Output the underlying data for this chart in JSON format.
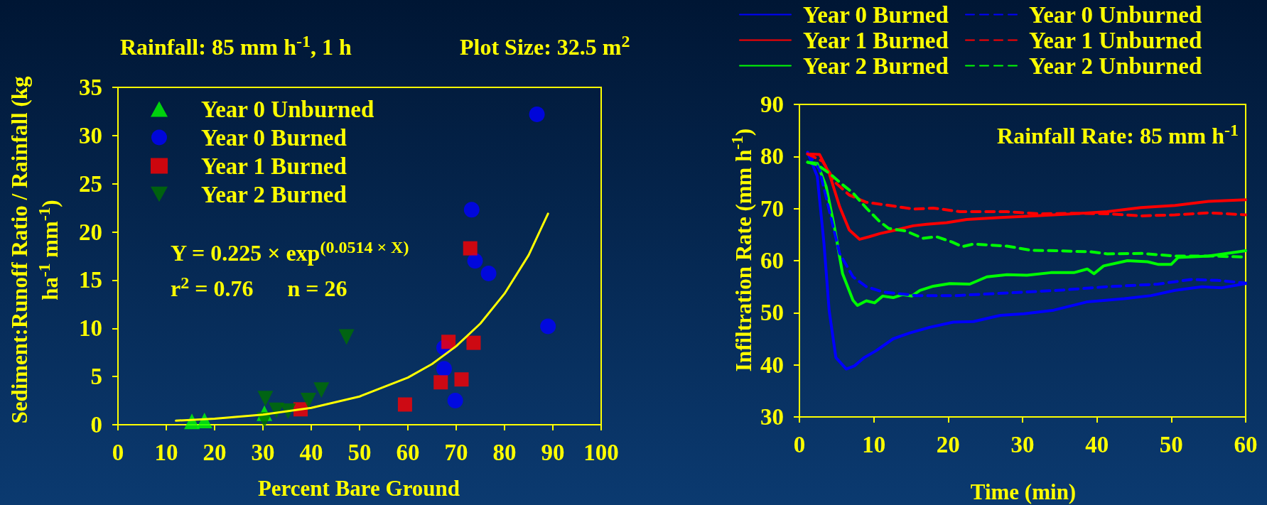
{
  "chart_data": [
    {
      "type": "scatter",
      "xlabel": "Percent Bare Ground",
      "ylabel": "Sediment:Runoff Ratio / Rainfall (kg ha$^{-1}$ mm$^{-1}$)",
      "annotations": [
        "Rainfall: 85 mm h$^{-1}$, 1 h",
        "Plot Size: 32.5 m$^{2}$",
        "Y = 0.225 × exp$^{(0.0514 × X)}$",
        "r$^{2}$ = 0.76      n = 26"
      ],
      "xlim": [
        0,
        100
      ],
      "xticks": [
        0,
        10,
        20,
        30,
        40,
        50,
        60,
        70,
        80,
        90,
        100
      ],
      "ylim": [
        0,
        35
      ],
      "yticks": [
        0,
        5,
        10,
        15,
        20,
        25,
        30,
        35
      ],
      "grid": false,
      "legend": "top left",
      "series": [
        {
          "name": "Year 0 Unburned",
          "color": "#00ff00",
          "marker": "triangle",
          "x": [
            15.3,
            17.9,
            30.3
          ],
          "values": [
            0.35,
            0.45,
            1.2
          ]
        },
        {
          "name": "Year 0 Burned",
          "color": "#0000ff",
          "marker": "circle",
          "x": [
            86.7,
            73.2,
            73.9,
            76.7,
            89.0,
            67.5,
            67.5,
            69.8
          ],
          "values": [
            32.2,
            22.3,
            17.0,
            15.7,
            10.2,
            8.0,
            5.8,
            2.5
          ]
        },
        {
          "name": "Year 1 Burned",
          "color": "#ff0000",
          "marker": "square",
          "x": [
            72.9,
            68.4,
            73.6,
            66.8,
            71.1,
            59.4,
            37.8
          ],
          "values": [
            18.3,
            8.6,
            8.5,
            4.4,
            4.7,
            2.1,
            1.6
          ]
        },
        {
          "name": "Year 2 Burned",
          "color": "#007000",
          "marker": "triangle-down",
          "x": [
            47.3,
            30.5,
            42.1,
            39.4,
            32.8,
            35.2,
            30.3
          ],
          "values": [
            9.1,
            2.7,
            3.6,
            2.5,
            1.5,
            1.4,
            0.5
          ]
        },
        {
          "type": "line",
          "color": "#ffff00",
          "marker": "none",
          "line_style": "solid",
          "x": [
            12,
            20,
            30,
            40,
            50,
            60,
            65,
            70,
            75,
            80,
            85,
            89
          ],
          "values": [
            0.42,
            0.63,
            1.05,
            1.75,
            2.93,
            4.89,
            6.3,
            8.15,
            10.5,
            13.6,
            17.6,
            21.9
          ]
        }
      ]
    },
    {
      "type": "line",
      "xlabel": "Time (min)",
      "ylabel": "Infiltration Rate (mm h$^{-1}$)",
      "annotations": [
        "Rainfall Rate: 85 mm h$^{-1}$"
      ],
      "xlim": [
        0,
        60
      ],
      "xticks": [
        0,
        10,
        20,
        30,
        40,
        50,
        60
      ],
      "ylim": [
        30,
        90
      ],
      "yticks": [
        30,
        40,
        50,
        60,
        70,
        80,
        90
      ],
      "grid": false,
      "legend": "top",
      "marker": "none",
      "series": [
        {
          "name": "Year 0 Burned",
          "color": "#0000ff",
          "line_style": "solid",
          "x": [
            1.1,
            2.4,
            3.3,
            4.0,
            4.9,
            6.3,
            7.4,
            8.7,
            10.3,
            12.6,
            14.8,
            17.5,
            20.7,
            23.4,
            27.0,
            30.2,
            34.2,
            38.7,
            43.7,
            47.3,
            50.5,
            54.1,
            56.8,
            60
          ],
          "values": [
            80.8,
            76.2,
            63.3,
            50.4,
            41.4,
            39.2,
            39.8,
            41.4,
            42.7,
            45.0,
            46.1,
            47.2,
            48.2,
            48.3,
            49.5,
            49.8,
            50.5,
            52.1,
            52.7,
            53.3,
            54.3,
            55.0,
            54.8,
            55.6
          ]
        },
        {
          "name": "Year 1 Burned",
          "color": "#ff0000",
          "line_style": "solid",
          "x": [
            1.1,
            2.7,
            4.0,
            5.4,
            6.7,
            8.1,
            9.4,
            10.8,
            13.0,
            15.3,
            17.1,
            19.8,
            22.5,
            27.0,
            31.5,
            36.9,
            41.4,
            45.9,
            50.5,
            55.0,
            60
          ],
          "values": [
            80.5,
            80.4,
            76.8,
            70.4,
            65.9,
            64.1,
            64.6,
            65.2,
            65.9,
            66.7,
            67.0,
            67.3,
            67.9,
            68.3,
            68.6,
            69.0,
            69.4,
            70.2,
            70.6,
            71.4,
            71.7
          ]
        },
        {
          "name": "Year 2 Burned",
          "color": "#00ff00",
          "line_style": "solid",
          "x": [
            1.1,
            2.4,
            3.6,
            4.7,
            5.8,
            7.2,
            7.8,
            9.0,
            10.1,
            11.2,
            12.6,
            13.9,
            15.1,
            16.2,
            18.0,
            20.2,
            22.9,
            25.2,
            27.9,
            30.6,
            33.8,
            36.9,
            38.7,
            39.6,
            40.9,
            44.1,
            46.8,
            48.2,
            50.0,
            50.9,
            55.0,
            60
          ],
          "values": [
            78.9,
            78.7,
            74.2,
            66.5,
            57.5,
            52.4,
            51.4,
            52.3,
            51.9,
            53.2,
            52.9,
            53.5,
            53.2,
            54.3,
            55.1,
            55.6,
            55.5,
            56.9,
            57.3,
            57.2,
            57.7,
            57.7,
            58.4,
            57.5,
            59.0,
            60.0,
            59.8,
            59.3,
            59.3,
            60.6,
            60.9,
            61.9
          ]
        },
        {
          "name": "Year 0 Unburned",
          "color": "#0000ff",
          "line_style": "dashed",
          "x": [
            1.1,
            2.7,
            4.0,
            5.4,
            7.2,
            9.0,
            11.2,
            15.7,
            21.1,
            27.9,
            34.7,
            41.4,
            48.2,
            52.7,
            56.3,
            60
          ],
          "values": [
            80.8,
            77.5,
            69.7,
            61.4,
            56.9,
            55.0,
            54.0,
            53.3,
            53.3,
            53.8,
            54.3,
            55.0,
            55.5,
            56.4,
            56.2,
            55.7
          ]
        },
        {
          "name": "Year 1 Unburned",
          "color": "#ff0000",
          "line_style": "dashed",
          "x": [
            1.1,
            3.1,
            4.9,
            6.7,
            9.0,
            12.6,
            15.3,
            18.0,
            21.6,
            27.9,
            32.4,
            36.9,
            41.4,
            45.9,
            50.5,
            55.0,
            60
          ],
          "values": [
            80.5,
            79.1,
            74.9,
            72.6,
            71.2,
            70.5,
            69.9,
            70.1,
            69.4,
            69.4,
            69.0,
            69.1,
            69.0,
            68.6,
            68.8,
            69.2,
            68.8
          ]
        },
        {
          "name": "Year 2 Unburned",
          "color": "#00ff00",
          "line_style": "dashed",
          "x": [
            1.1,
            2.4,
            4.0,
            5.8,
            7.2,
            9.0,
            10.8,
            12.0,
            14.3,
            16.6,
            18.4,
            20.5,
            21.9,
            23.4,
            27.9,
            31.1,
            34.7,
            39.2,
            41.4,
            45.9,
            50.5,
            55.0,
            60
          ],
          "values": [
            78.9,
            78.4,
            76.8,
            74.6,
            73.0,
            70.1,
            67.5,
            66.2,
            65.7,
            64.3,
            64.6,
            63.6,
            62.7,
            63.2,
            62.8,
            62.0,
            61.9,
            61.7,
            61.3,
            61.4,
            60.9,
            60.9,
            60.7
          ]
        }
      ]
    }
  ]
}
